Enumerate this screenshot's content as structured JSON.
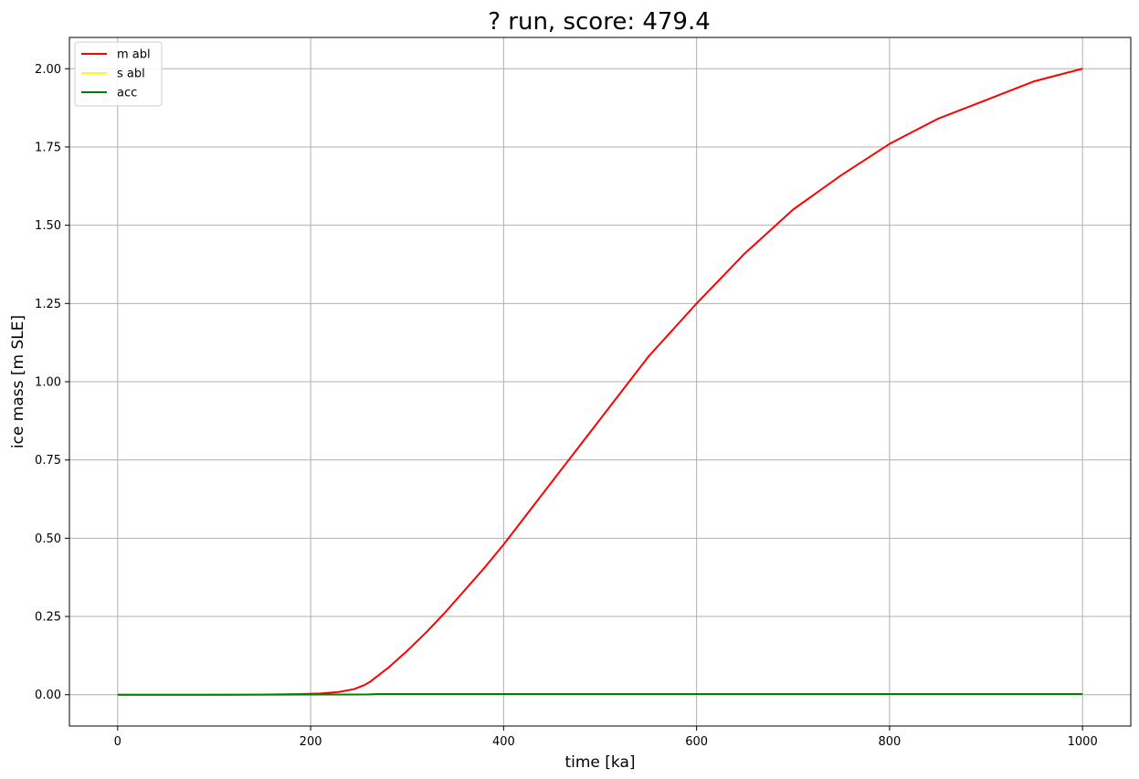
{
  "chart_data": {
    "type": "line",
    "title": "? run, score: 479.4",
    "xlabel": "time [ka]",
    "ylabel": "ice mass [m SLE]",
    "xlim": [
      -50,
      1050
    ],
    "ylim": [
      -0.1,
      2.1
    ],
    "xticks": [
      0,
      200,
      400,
      600,
      800,
      1000
    ],
    "xtick_labels": [
      "0",
      "200",
      "400",
      "600",
      "800",
      "1000"
    ],
    "yticks": [
      0.0,
      0.25,
      0.5,
      0.75,
      1.0,
      1.25,
      1.5,
      1.75,
      2.0
    ],
    "ytick_labels": [
      "0.00",
      "0.25",
      "0.50",
      "0.75",
      "1.00",
      "1.25",
      "1.50",
      "1.75",
      "2.00"
    ],
    "grid": true,
    "legend_position": "top-left",
    "series": [
      {
        "name": "m abl",
        "color": "#ff0000",
        "x": [
          0,
          50,
          100,
          150,
          190,
          210,
          230,
          245,
          255,
          262,
          266,
          280,
          300,
          320,
          340,
          360,
          380,
          400,
          450,
          500,
          550,
          600,
          650,
          700,
          750,
          800,
          850,
          900,
          950,
          1000
        ],
        "y": [
          0.0,
          0.0,
          0.0,
          0.0005,
          0.002,
          0.004,
          0.009,
          0.018,
          0.03,
          0.042,
          0.052,
          0.085,
          0.14,
          0.2,
          0.265,
          0.335,
          0.405,
          0.48,
          0.68,
          0.88,
          1.08,
          1.25,
          1.41,
          1.55,
          1.66,
          1.76,
          1.84,
          1.9,
          1.96,
          2.0
        ]
      },
      {
        "name": "s abl",
        "color": "#ffff00",
        "x": [
          0,
          100,
          200,
          260,
          270,
          400,
          600,
          800,
          1000
        ],
        "y": [
          0.0,
          0.0,
          0.0005,
          0.001,
          0.002,
          0.002,
          0.002,
          0.002,
          0.002
        ]
      },
      {
        "name": "acc",
        "color": "#008000",
        "x": [
          0,
          100,
          200,
          260,
          270,
          400,
          600,
          800,
          1000
        ],
        "y": [
          0.0,
          0.0,
          0.0005,
          0.001,
          0.002,
          0.002,
          0.002,
          0.002,
          0.002
        ]
      }
    ]
  }
}
